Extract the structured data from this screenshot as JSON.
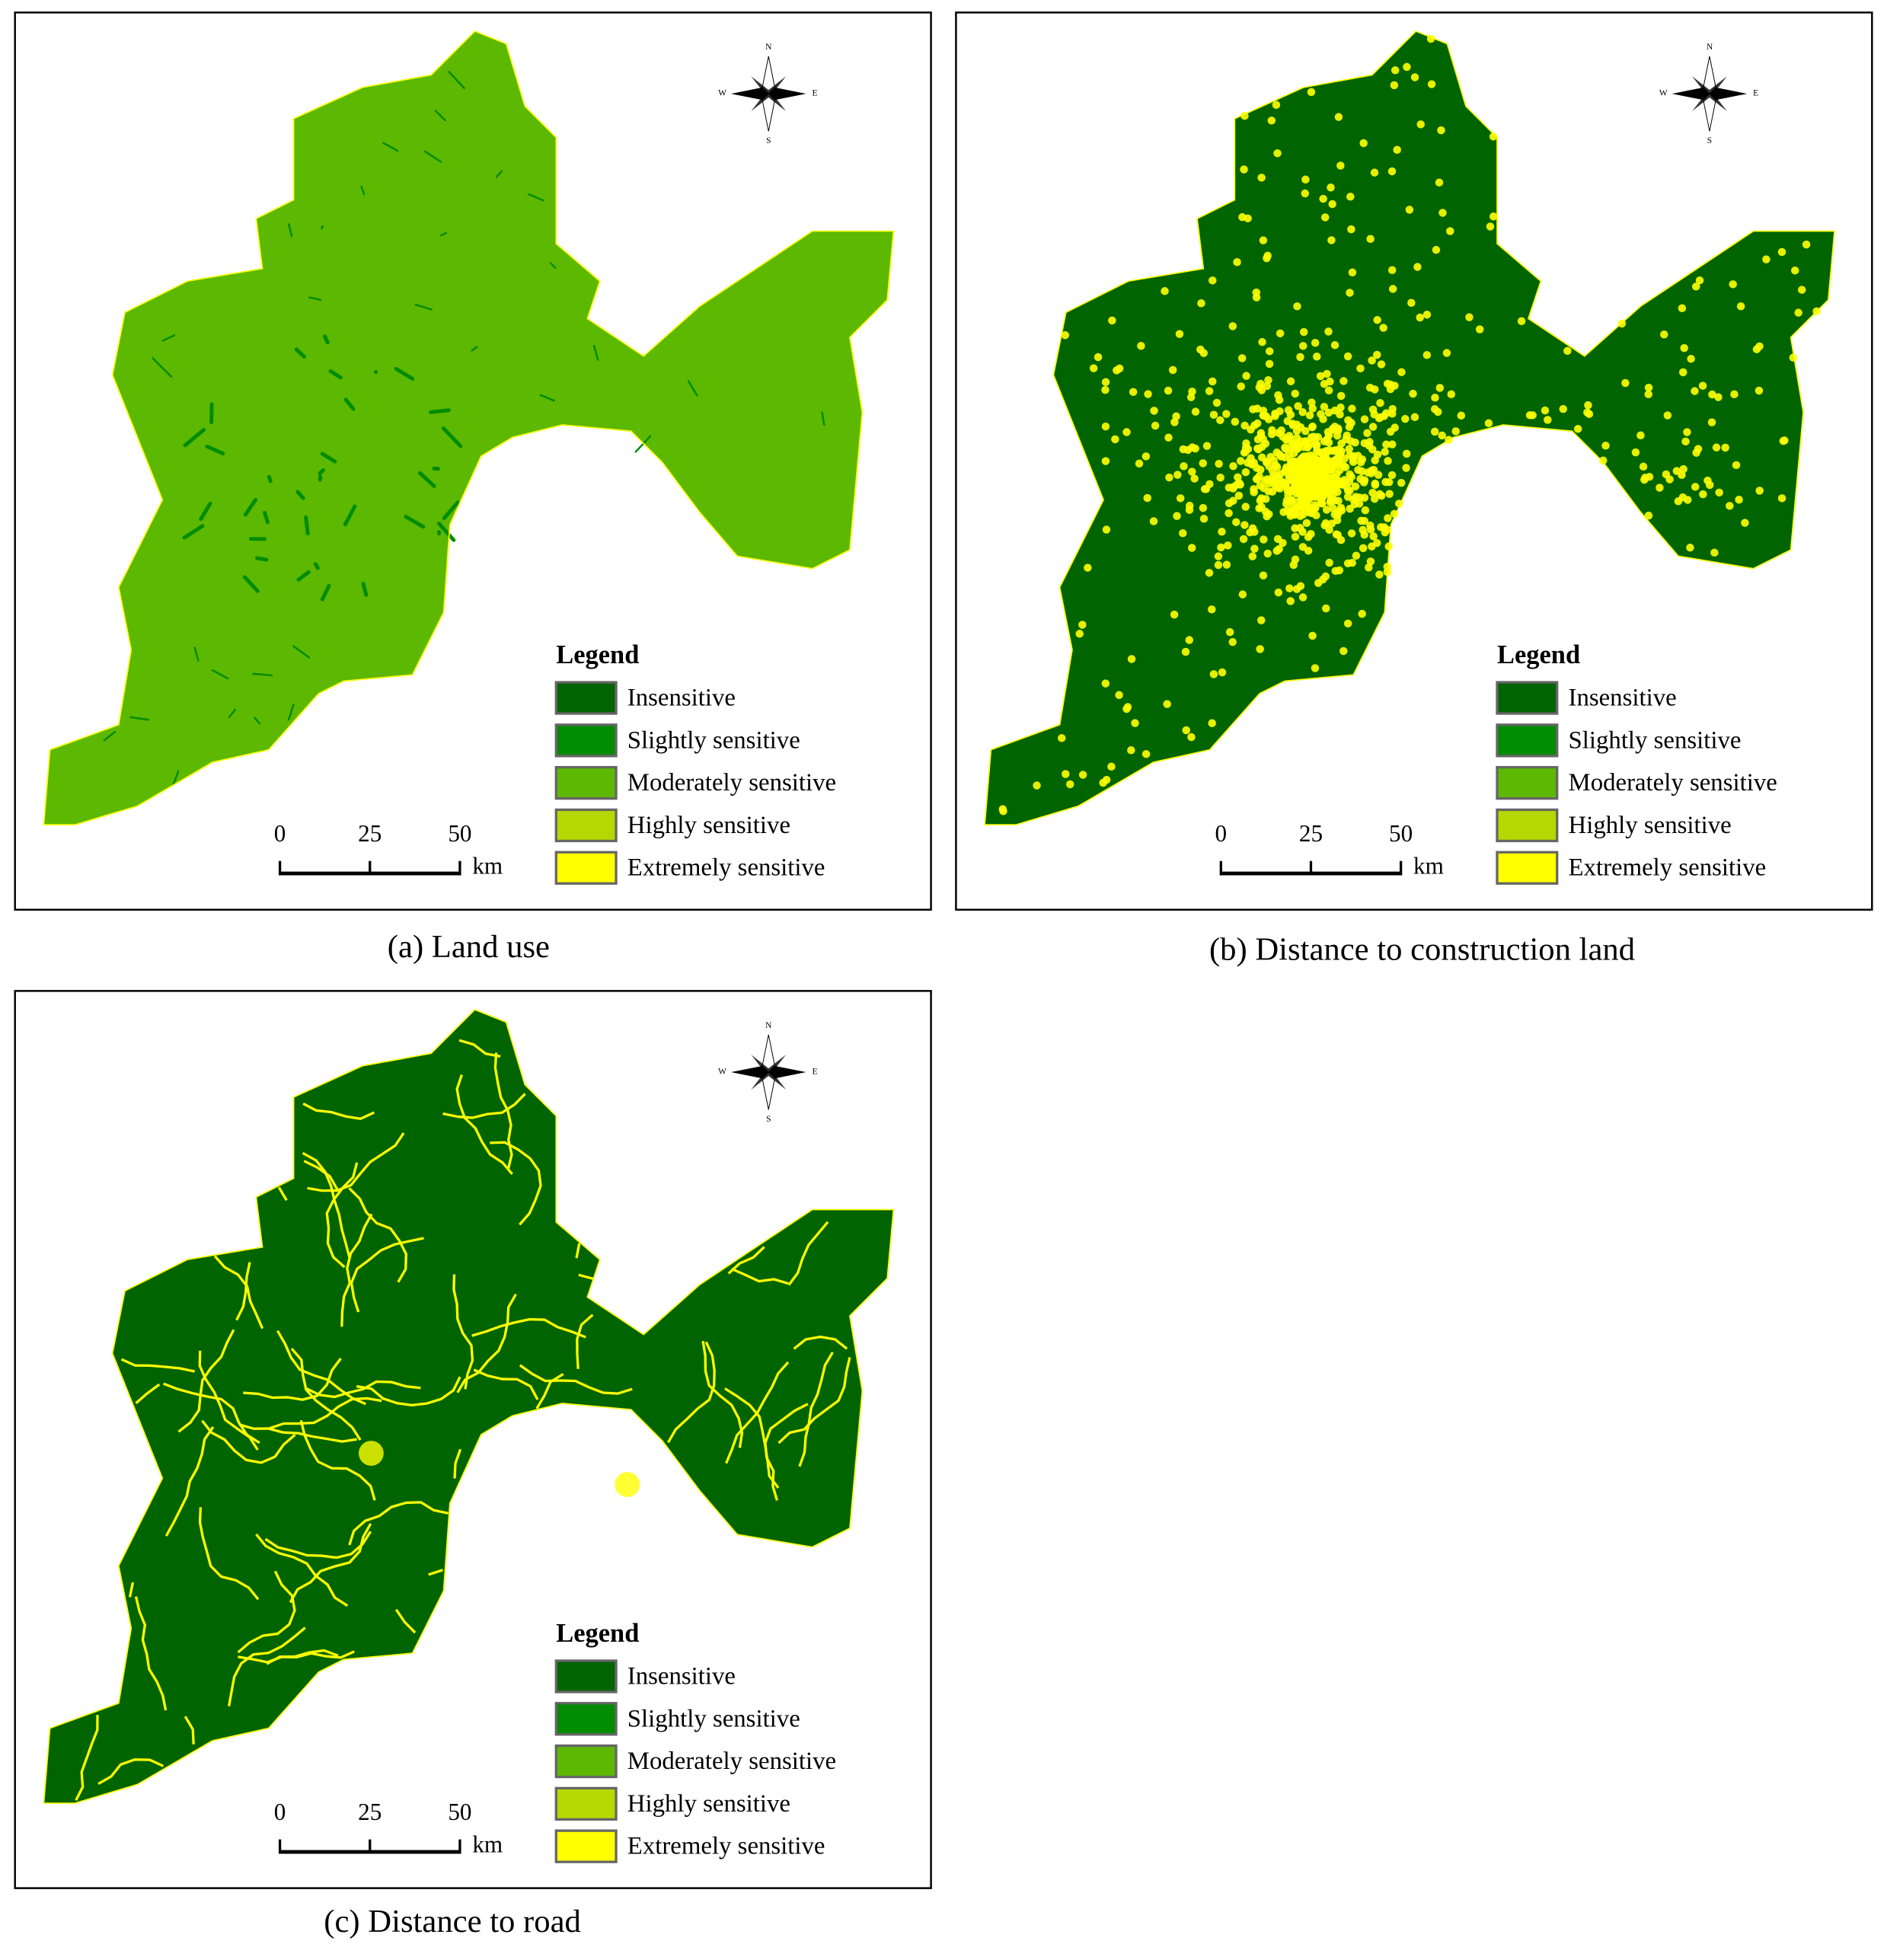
{
  "panels": [
    {
      "caption": "(a) Land use",
      "legend": {
        "title": "Legend",
        "items": [
          {
            "label": "Insensitive",
            "color": "#006400"
          },
          {
            "label": "Slightly sensitive",
            "color": "#008c00"
          },
          {
            "label": "Moderately sensitive",
            "color": "#5cb800"
          },
          {
            "label": "Highly sensitive",
            "color": "#b5d900"
          },
          {
            "label": "Extremely sensitive",
            "color": "#ffff00"
          }
        ]
      },
      "scale_bar": {
        "ticks": [
          0,
          25,
          50
        ],
        "unit": "km"
      },
      "compass": {
        "n": "N",
        "s": "S",
        "e": "E",
        "w": "W"
      }
    },
    {
      "caption": "(b) Distance to construction land",
      "legend": {
        "title": "Legend",
        "items": [
          {
            "label": "Insensitive",
            "color": "#006400"
          },
          {
            "label": "Slightly sensitive",
            "color": "#008c00"
          },
          {
            "label": "Moderately sensitive",
            "color": "#5cb800"
          },
          {
            "label": "Highly sensitive",
            "color": "#b5d900"
          },
          {
            "label": "Extremely sensitive",
            "color": "#ffff00"
          }
        ]
      },
      "scale_bar": {
        "ticks": [
          0,
          25,
          50
        ],
        "unit": "km"
      },
      "compass": {
        "n": "N",
        "s": "S",
        "e": "E",
        "w": "W"
      }
    },
    {
      "caption": "(c) Distance to road",
      "legend": {
        "title": "Legend",
        "items": [
          {
            "label": "Insensitive",
            "color": "#006400"
          },
          {
            "label": "Slightly sensitive",
            "color": "#008c00"
          },
          {
            "label": "Moderately sensitive",
            "color": "#5cb800"
          },
          {
            "label": "Highly sensitive",
            "color": "#b5d900"
          },
          {
            "label": "Extremely sensitive",
            "color": "#ffff00"
          }
        ]
      },
      "scale_bar": {
        "ticks": [
          0,
          25,
          50
        ],
        "unit": "km"
      },
      "compass": {
        "n": "N",
        "s": "S",
        "e": "E",
        "w": "W"
      }
    }
  ]
}
